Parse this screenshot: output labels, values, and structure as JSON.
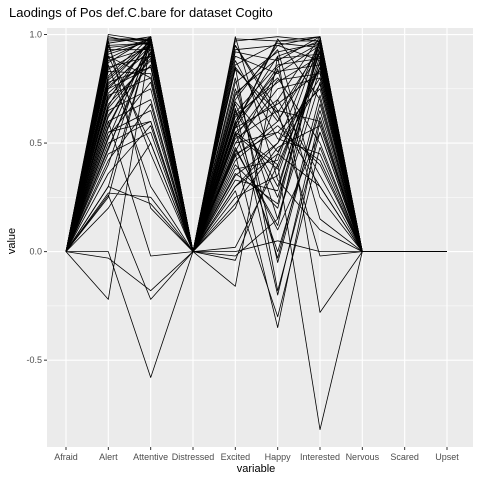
{
  "chart_data": {
    "type": "line",
    "title": "Laodings of Pos def.C.bare for dataset Cogito",
    "xlabel": "variable",
    "ylabel": "value",
    "categories": [
      "Afraid",
      "Alert",
      "Attentive",
      "Distressed",
      "Excited",
      "Happy",
      "Interested",
      "Nervous",
      "Scared",
      "Upset"
    ],
    "y_ticks": [
      "-0.5",
      "0.0",
      "0.5",
      "1.0"
    ],
    "y_tick_values": [
      -0.5,
      0.0,
      0.5,
      1.0
    ],
    "ylim": [
      -0.9,
      1.03
    ],
    "grid": true,
    "legend": "none",
    "line_color": "#000000",
    "panel_color": "#ebebeb",
    "grid_color": "#ffffff",
    "series": [
      {
        "values": [
          0,
          1.0,
          0.97,
          0,
          0.98,
          0.97,
          0.97,
          0,
          0,
          0
        ]
      },
      {
        "values": [
          0,
          0.97,
          0.98,
          0,
          0.9,
          0.82,
          0.95,
          0,
          0,
          0
        ]
      },
      {
        "values": [
          0,
          0.95,
          0.96,
          0,
          0.85,
          0.6,
          0.92,
          0,
          0,
          0
        ]
      },
      {
        "values": [
          0,
          0.92,
          0.98,
          0,
          0.7,
          0.95,
          0.88,
          0,
          0,
          0
        ]
      },
      {
        "values": [
          0,
          0.88,
          0.94,
          0,
          0.6,
          0.9,
          0.97,
          0,
          0,
          0
        ]
      },
      {
        "values": [
          0,
          0.85,
          0.9,
          0,
          0.55,
          0.4,
          0.85,
          0,
          0,
          0
        ]
      },
      {
        "values": [
          0,
          0.8,
          0.97,
          0,
          0.5,
          0.75,
          0.8,
          0,
          0,
          0
        ]
      },
      {
        "values": [
          0,
          0.78,
          0.85,
          0,
          0.65,
          0.3,
          0.9,
          0,
          0,
          0
        ]
      },
      {
        "values": [
          0,
          0.75,
          0.95,
          0,
          0.45,
          0.55,
          0.75,
          0,
          0,
          0
        ]
      },
      {
        "values": [
          0,
          0.72,
          0.8,
          0,
          0.58,
          0.98,
          0.7,
          0,
          0,
          0
        ]
      },
      {
        "values": [
          0,
          0.7,
          0.98,
          0,
          0.4,
          0.2,
          0.95,
          0,
          0,
          0
        ]
      },
      {
        "values": [
          0,
          0.68,
          0.88,
          0,
          0.52,
          0.65,
          0.6,
          0,
          0,
          0
        ]
      },
      {
        "values": [
          0,
          0.65,
          0.75,
          0,
          0.35,
          0.5,
          0.98,
          0,
          0,
          0
        ]
      },
      {
        "values": [
          0,
          0.62,
          0.92,
          0,
          0.48,
          0.1,
          0.55,
          0,
          0,
          0
        ]
      },
      {
        "values": [
          0,
          0.6,
          0.7,
          0,
          0.3,
          0.45,
          0.85,
          0,
          0,
          0
        ]
      },
      {
        "values": [
          0,
          0.58,
          0.96,
          0,
          0.62,
          0.8,
          0.5,
          0,
          0,
          0
        ]
      },
      {
        "values": [
          0,
          0.55,
          0.65,
          0,
          0.25,
          0.35,
          0.92,
          0,
          0,
          0
        ]
      },
      {
        "values": [
          0,
          0.52,
          0.98,
          0,
          0.55,
          0.0,
          0.65,
          0,
          0,
          0
        ]
      },
      {
        "values": [
          0,
          0.5,
          0.6,
          0,
          0.42,
          0.58,
          0.4,
          0,
          0,
          0
        ]
      },
      {
        "values": [
          0,
          0.48,
          0.92,
          0,
          0.68,
          0.25,
          0.88,
          0,
          0,
          0
        ]
      },
      {
        "values": [
          0,
          0.45,
          0.55,
          0,
          0.2,
          0.7,
          0.35,
          0,
          0,
          0
        ]
      },
      {
        "values": [
          0,
          0.9,
          0.5,
          0,
          0.75,
          0.15,
          0.78,
          0,
          0,
          0
        ]
      },
      {
        "values": [
          0,
          0.95,
          0.45,
          0,
          0.95,
          0.62,
          0.3,
          0,
          0,
          0
        ]
      },
      {
        "values": [
          0,
          0.98,
          0.98,
          0,
          0.92,
          0.88,
          0.99,
          0,
          0,
          0
        ]
      },
      {
        "values": [
          0,
          0.93,
          0.93,
          0,
          0.8,
          -0.05,
          0.68,
          0,
          0,
          0
        ]
      },
      {
        "values": [
          0,
          0.87,
          0.99,
          0,
          0.88,
          0.52,
          0.45,
          0,
          0,
          0
        ]
      },
      {
        "values": [
          0,
          0.83,
          0.82,
          0,
          0.72,
          0.93,
          0.25,
          0,
          0,
          0
        ]
      },
      {
        "values": [
          0,
          0.77,
          0.97,
          0,
          0.38,
          0.42,
          0.97,
          0,
          0,
          0
        ]
      },
      {
        "values": [
          0,
          0.73,
          0.9,
          0,
          0.66,
          -0.2,
          0.62,
          0,
          0,
          0
        ]
      },
      {
        "values": [
          0,
          0.67,
          0.99,
          0,
          0.57,
          0.68,
          0.83,
          0,
          0,
          0
        ]
      },
      {
        "values": [
          0,
          0.63,
          0.86,
          0,
          0.46,
          0.84,
          0.15,
          0,
          0,
          0
        ]
      },
      {
        "values": [
          0,
          0.57,
          0.97,
          0,
          0.33,
          0.28,
          0.93,
          0,
          0,
          0
        ]
      },
      {
        "values": [
          0,
          0.53,
          0.78,
          0,
          0.6,
          -0.03,
          0.72,
          0,
          0,
          0
        ]
      },
      {
        "values": [
          0,
          0.47,
          0.96,
          0,
          0.44,
          0.6,
          0.96,
          0,
          0,
          0
        ]
      },
      {
        "values": [
          0,
          0.42,
          0.68,
          0,
          0.22,
          0.48,
          0.58,
          0,
          0,
          0
        ]
      },
      {
        "values": [
          0,
          0.4,
          0.99,
          0,
          0.54,
          0.38,
          0.87,
          0,
          0,
          0
        ]
      },
      {
        "values": [
          0,
          0.36,
          0.58,
          0,
          0.28,
          -0.3,
          0.48,
          0,
          0,
          0
        ]
      },
      {
        "values": [
          0,
          0.3,
          0.97,
          0,
          0.36,
          0.22,
          0.98,
          0,
          0,
          0
        ]
      },
      {
        "values": [
          0,
          0.27,
          0.25,
          0,
          0.5,
          0.55,
          0.42,
          0,
          0,
          0
        ]
      },
      {
        "values": [
          0,
          0.25,
          0.98,
          0,
          0.63,
          0.78,
          0.9,
          0,
          0,
          0
        ]
      },
      {
        "values": [
          0,
          0.97,
          0.2,
          0,
          0.58,
          0.97,
          0.99,
          0,
          0,
          0
        ]
      },
      {
        "values": [
          0,
          0.99,
          0.95,
          0,
          0.99,
          0.33,
          0.1,
          0,
          0,
          0
        ]
      },
      {
        "values": [
          0,
          0.91,
          0.97,
          0,
          0.84,
          0.64,
          0.94,
          0,
          0,
          0
        ]
      },
      {
        "values": [
          0,
          0.86,
          0.3,
          0,
          0.57,
          0.85,
          0.96,
          0,
          0,
          0
        ]
      },
      {
        "values": [
          0,
          0.81,
          0.99,
          0,
          0.47,
          0.12,
          0.98,
          0,
          0,
          0
        ]
      },
      {
        "values": [
          0,
          0.79,
          0.96,
          0,
          0.69,
          0.46,
          0.77,
          0,
          0,
          0
        ]
      },
      {
        "values": [
          0,
          0.98,
          0.97,
          0,
          0.97,
          0.99,
          0.97,
          0,
          0,
          0
        ]
      },
      {
        "values": [
          0,
          0.96,
          0.99,
          0,
          0.93,
          0.95,
          0.99,
          0,
          0,
          0
        ]
      },
      {
        "values": [
          0,
          0.94,
          0.96,
          0,
          0.86,
          0.96,
          0.94,
          0,
          0,
          0
        ]
      },
      {
        "values": [
          0,
          0.89,
          0.98,
          0,
          0.78,
          0.92,
          0.96,
          0,
          0,
          0
        ]
      },
      {
        "values": [
          0,
          0.84,
          0.95,
          0,
          0.73,
          0.89,
          0.91,
          0,
          0,
          0
        ]
      },
      {
        "values": [
          0,
          0.76,
          0.93,
          0,
          0.64,
          0.86,
          0.89,
          0,
          0,
          0
        ]
      },
      {
        "values": [
          0,
          0.71,
          0.91,
          0,
          0.59,
          0.83,
          0.86,
          0,
          0,
          0
        ]
      },
      {
        "values": [
          0,
          0.66,
          0.89,
          0,
          0.53,
          0.79,
          0.82,
          0,
          0,
          0
        ]
      },
      {
        "values": [
          0,
          -0.22,
          0.97,
          0,
          0.3,
          0.5,
          0.8,
          0,
          0,
          0
        ]
      },
      {
        "values": [
          0,
          0.26,
          -0.22,
          0,
          -0.02,
          0.15,
          0.85,
          0,
          0,
          0
        ]
      },
      {
        "values": [
          0,
          0.0,
          -0.58,
          0,
          0.0,
          0.05,
          0.0,
          0,
          0,
          0
        ]
      },
      {
        "values": [
          0,
          -0.03,
          -0.18,
          0,
          0.45,
          -0.35,
          0.6,
          0,
          0,
          0
        ]
      },
      {
        "values": [
          0,
          0.6,
          -0.02,
          0,
          0.55,
          0.7,
          0.99,
          0,
          0,
          0
        ]
      },
      {
        "values": [
          0,
          0.3,
          0.22,
          0,
          -0.16,
          0.9,
          -0.28,
          0,
          0,
          0
        ]
      },
      {
        "values": [
          0,
          0.55,
          0.6,
          0,
          0.02,
          0.4,
          -0.82,
          0,
          0,
          0
        ]
      },
      {
        "values": [
          0,
          0.9,
          0.8,
          0,
          0.95,
          0.65,
          -0.02,
          0,
          0,
          0
        ]
      },
      {
        "values": [
          0,
          0.75,
          0.85,
          0,
          -0.04,
          0.45,
          0.3,
          0,
          0,
          0
        ]
      },
      {
        "values": [
          0,
          0.2,
          0.5,
          0,
          0.85,
          -0.18,
          0.55,
          0,
          0,
          0
        ]
      }
    ]
  }
}
